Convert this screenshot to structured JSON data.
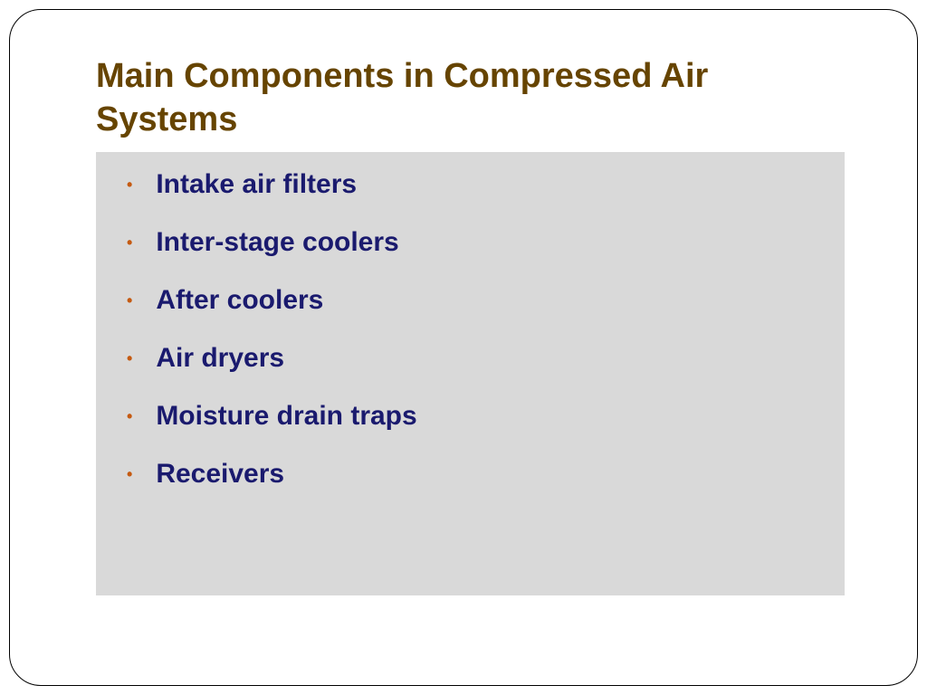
{
  "slide": {
    "title": "Main Components in Compressed Air Systems",
    "title_color": "#664400",
    "title_fontsize": 38,
    "body_background": "#d9d9d9",
    "bullet_color": "#c55a11",
    "text_color": "#1a1a6e",
    "text_fontsize": 30,
    "frame_border_color": "#000000",
    "frame_border_radius": 35,
    "bullets": [
      "Intake air filters",
      "Inter-stage coolers",
      "After coolers",
      "Air dryers",
      "Moisture drain traps",
      "Receivers"
    ]
  }
}
